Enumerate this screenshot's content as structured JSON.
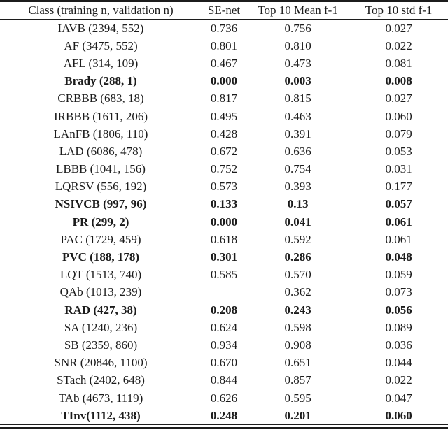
{
  "colors": {
    "background": "#ffffff",
    "text": "#1c1c1c",
    "rule": "#1c1c1c"
  },
  "table": {
    "type": "table",
    "columns": [
      "Class (training n, validation n)",
      "SE-net",
      "Top 10 Mean f-1",
      "Top 10 std f-1"
    ],
    "rows": [
      {
        "class_label": "IAVB (2394, 552)",
        "se_net": "0.736",
        "top10_mean": "0.756",
        "top10_std": "0.027",
        "bold": false
      },
      {
        "class_label": "AF (3475, 552)",
        "se_net": "0.801",
        "top10_mean": "0.810",
        "top10_std": "0.022",
        "bold": false
      },
      {
        "class_label": "AFL (314, 109)",
        "se_net": "0.467",
        "top10_mean": "0.473",
        "top10_std": "0.081",
        "bold": false
      },
      {
        "class_label": "Brady (288, 1)",
        "se_net": "0.000",
        "top10_mean": "0.003",
        "top10_std": "0.008",
        "bold": true
      },
      {
        "class_label": "CRBBB (683, 18)",
        "se_net": "0.817",
        "top10_mean": "0.815",
        "top10_std": "0.027",
        "bold": false
      },
      {
        "class_label": "IRBBB (1611, 206)",
        "se_net": "0.495",
        "top10_mean": "0.463",
        "top10_std": "0.060",
        "bold": false
      },
      {
        "class_label": "LAnFB (1806, 110)",
        "se_net": "0.428",
        "top10_mean": "0.391",
        "top10_std": "0.079",
        "bold": false
      },
      {
        "class_label": "LAD (6086, 478)",
        "se_net": "0.672",
        "top10_mean": "0.636",
        "top10_std": "0.053",
        "bold": false
      },
      {
        "class_label": "LBBB (1041, 156)",
        "se_net": "0.752",
        "top10_mean": "0.754",
        "top10_std": "0.031",
        "bold": false
      },
      {
        "class_label": "LQRSV (556, 192)",
        "se_net": "0.573",
        "top10_mean": "0.393",
        "top10_std": "0.177",
        "bold": false
      },
      {
        "class_label": "NSIVCB (997, 96)",
        "se_net": "0.133",
        "top10_mean": "0.13",
        "top10_std": "0.057",
        "bold": true
      },
      {
        "class_label": "PR (299, 2)",
        "se_net": "0.000",
        "top10_mean": "0.041",
        "top10_std": "0.061",
        "bold": true
      },
      {
        "class_label": "PAC (1729, 459)",
        "se_net": "0.618",
        "top10_mean": "0.592",
        "top10_std": "0.061",
        "bold": false
      },
      {
        "class_label": "PVC (188, 178)",
        "se_net": "0.301",
        "top10_mean": "0.286",
        "top10_std": "0.048",
        "bold": true
      },
      {
        "class_label": "LQT (1513, 740)",
        "se_net": "0.585",
        "top10_mean": "0.570",
        "top10_std": "0.059",
        "bold": false
      },
      {
        "class_label": "QAb (1013, 239)",
        "se_net": "",
        "top10_mean": "0.362",
        "top10_std": "0.073",
        "bold": false
      },
      {
        "class_label": "RAD (427, 38)",
        "se_net": "0.208",
        "top10_mean": "0.243",
        "top10_std": "0.056",
        "bold": true
      },
      {
        "class_label": "SA (1240, 236)",
        "se_net": "0.624",
        "top10_mean": "0.598",
        "top10_std": "0.089",
        "bold": false
      },
      {
        "class_label": "SB (2359, 860)",
        "se_net": "0.934",
        "top10_mean": "0.908",
        "top10_std": "0.036",
        "bold": false
      },
      {
        "class_label": "SNR (20846, 1100)",
        "se_net": "0.670",
        "top10_mean": "0.651",
        "top10_std": "0.044",
        "bold": false
      },
      {
        "class_label": "STach (2402, 648)",
        "se_net": "0.844",
        "top10_mean": "0.857",
        "top10_std": "0.022",
        "bold": false
      },
      {
        "class_label": "TAb (4673, 1119)",
        "se_net": "0.626",
        "top10_mean": "0.595",
        "top10_std": "0.047",
        "bold": false
      },
      {
        "class_label": "TInv(1112, 438)",
        "se_net": "0.248",
        "top10_mean": "0.201",
        "top10_std": "0.060",
        "bold": true
      }
    ]
  }
}
